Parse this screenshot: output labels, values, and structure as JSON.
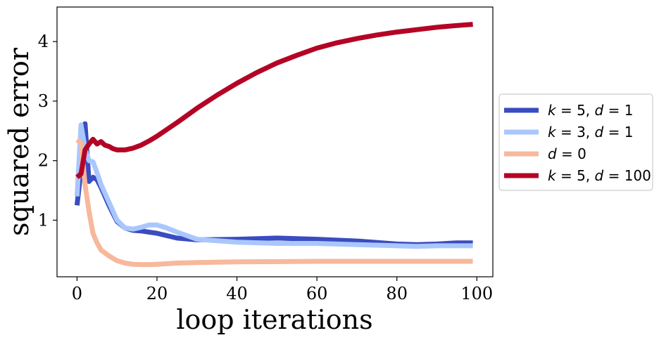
{
  "chart_data": {
    "type": "line",
    "title": "",
    "xlabel": "loop iterations",
    "ylabel": "squared error",
    "xlim": [
      -5,
      104
    ],
    "ylim": [
      0.05,
      4.58
    ],
    "xticks": [
      0,
      20,
      40,
      60,
      80,
      100
    ],
    "yticks": [
      1,
      2,
      3,
      4
    ],
    "grid": false,
    "legend_placement": "right-outside-center",
    "series": [
      {
        "name": "k = 5, d = 1",
        "legend": {
          "k": "k",
          "kval": "5",
          "d": "d",
          "dval": "1"
        },
        "color": "#3b4cc0",
        "x": [
          0,
          1,
          2,
          3,
          4,
          5,
          6,
          8,
          10,
          12,
          14,
          16,
          18,
          20,
          25,
          30,
          40,
          50,
          60,
          70,
          80,
          85,
          90,
          95,
          99
        ],
        "y": [
          1.25,
          1.85,
          2.62,
          1.65,
          1.72,
          1.68,
          1.55,
          1.25,
          0.98,
          0.87,
          0.83,
          0.82,
          0.8,
          0.78,
          0.7,
          0.67,
          0.68,
          0.7,
          0.68,
          0.65,
          0.6,
          0.59,
          0.6,
          0.62,
          0.62
        ]
      },
      {
        "name": "k = 3, d = 1",
        "legend": {
          "k": "k",
          "kval": "3",
          "d": "d",
          "dval": "1"
        },
        "color": "#aac7fd",
        "x": [
          0,
          1,
          2,
          3,
          4,
          5,
          6,
          8,
          10,
          12,
          14,
          16,
          18,
          20,
          22,
          25,
          30,
          40,
          50,
          60,
          70,
          80,
          85,
          90,
          95,
          99
        ],
        "y": [
          1.4,
          2.6,
          2.2,
          2.0,
          1.98,
          1.8,
          1.6,
          1.3,
          1.0,
          0.87,
          0.85,
          0.88,
          0.92,
          0.92,
          0.88,
          0.8,
          0.68,
          0.63,
          0.61,
          0.61,
          0.59,
          0.57,
          0.56,
          0.57,
          0.57,
          0.57
        ]
      },
      {
        "name": "d = 0",
        "legend": {
          "d": "d",
          "dval": "0"
        },
        "color": "#f7b89c",
        "x": [
          0,
          1,
          2,
          3,
          4,
          5,
          6,
          8,
          10,
          12,
          14,
          16,
          18,
          20,
          25,
          30,
          40,
          60,
          80,
          99
        ],
        "y": [
          2.35,
          2.3,
          1.6,
          1.15,
          0.78,
          0.62,
          0.5,
          0.4,
          0.32,
          0.28,
          0.26,
          0.255,
          0.255,
          0.26,
          0.28,
          0.29,
          0.3,
          0.31,
          0.31,
          0.31
        ]
      },
      {
        "name": "k = 5, d = 100",
        "legend": {
          "k": "k",
          "kval": "5",
          "d": "d",
          "dval": "100"
        },
        "color": "#b40426",
        "x": [
          0,
          1,
          2,
          3,
          4,
          5,
          6,
          7,
          8,
          9,
          10,
          12,
          14,
          16,
          18,
          20,
          25,
          30,
          35,
          40,
          45,
          50,
          55,
          60,
          65,
          70,
          75,
          80,
          85,
          90,
          95,
          99
        ],
        "y": [
          1.72,
          1.78,
          2.18,
          2.28,
          2.36,
          2.28,
          2.32,
          2.26,
          2.24,
          2.2,
          2.18,
          2.18,
          2.21,
          2.26,
          2.33,
          2.41,
          2.64,
          2.88,
          3.1,
          3.3,
          3.48,
          3.64,
          3.77,
          3.89,
          3.98,
          4.05,
          4.11,
          4.16,
          4.2,
          4.24,
          4.27,
          4.29
        ]
      }
    ]
  }
}
